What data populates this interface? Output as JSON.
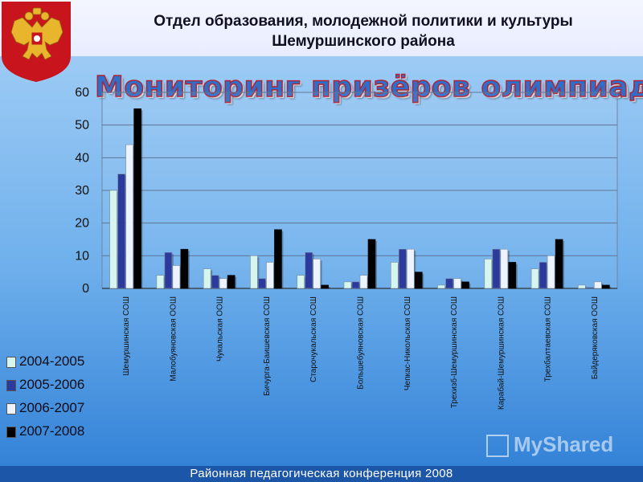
{
  "header": {
    "line1": "Отдел образования, молодежной политики и культуры",
    "line2": "Шемуршинского района"
  },
  "footer": {
    "text": "Районная педагогическая  конференция 2008"
  },
  "watermark": {
    "text": "MyShared"
  },
  "colors": {
    "series": [
      "#d6f5ee",
      "#2b3a9c",
      "#eef4ff",
      "#000000"
    ],
    "footer_bg": "#1c56a8"
  },
  "chart_data": {
    "type": "bar",
    "title": "Мониторинг призёров олимпиад",
    "xlabel": "",
    "ylabel": "",
    "ylim": [
      0,
      60
    ],
    "yticks": [
      0,
      10,
      20,
      30,
      40,
      50,
      60
    ],
    "grid": true,
    "legend_position": "bottom-left",
    "categories": [
      "Шемуршинская  СОШ",
      "Малобуяновская  ООШ",
      "Чукальская ООШ",
      "Бичурга-Баишевская  СОШ",
      "Старочукальская  СОШ",
      "Большебуяновская  СОШ",
      "Чепкас-Никольская  СОШ",
      "Трехизб-Шемуршинская  СОШ",
      "Карабай-Шемуршинская  СОШ",
      "Трехбалтаевская  СОШ",
      "Байдеряковская  ООШ"
    ],
    "series": [
      {
        "name": "2004-2005",
        "values": [
          30,
          4,
          6,
          10,
          4,
          2,
          8,
          1,
          9,
          6,
          1
        ]
      },
      {
        "name": "2005-2006",
        "values": [
          35,
          11,
          4,
          3,
          11,
          2,
          12,
          3,
          12,
          8,
          0.3
        ]
      },
      {
        "name": "2006-2007",
        "values": [
          44,
          7,
          3,
          8,
          9,
          4,
          12,
          3,
          12,
          10,
          2
        ]
      },
      {
        "name": "2007-2008",
        "values": [
          55,
          12,
          4,
          18,
          1,
          15,
          5,
          2,
          8,
          15,
          1
        ]
      }
    ]
  }
}
